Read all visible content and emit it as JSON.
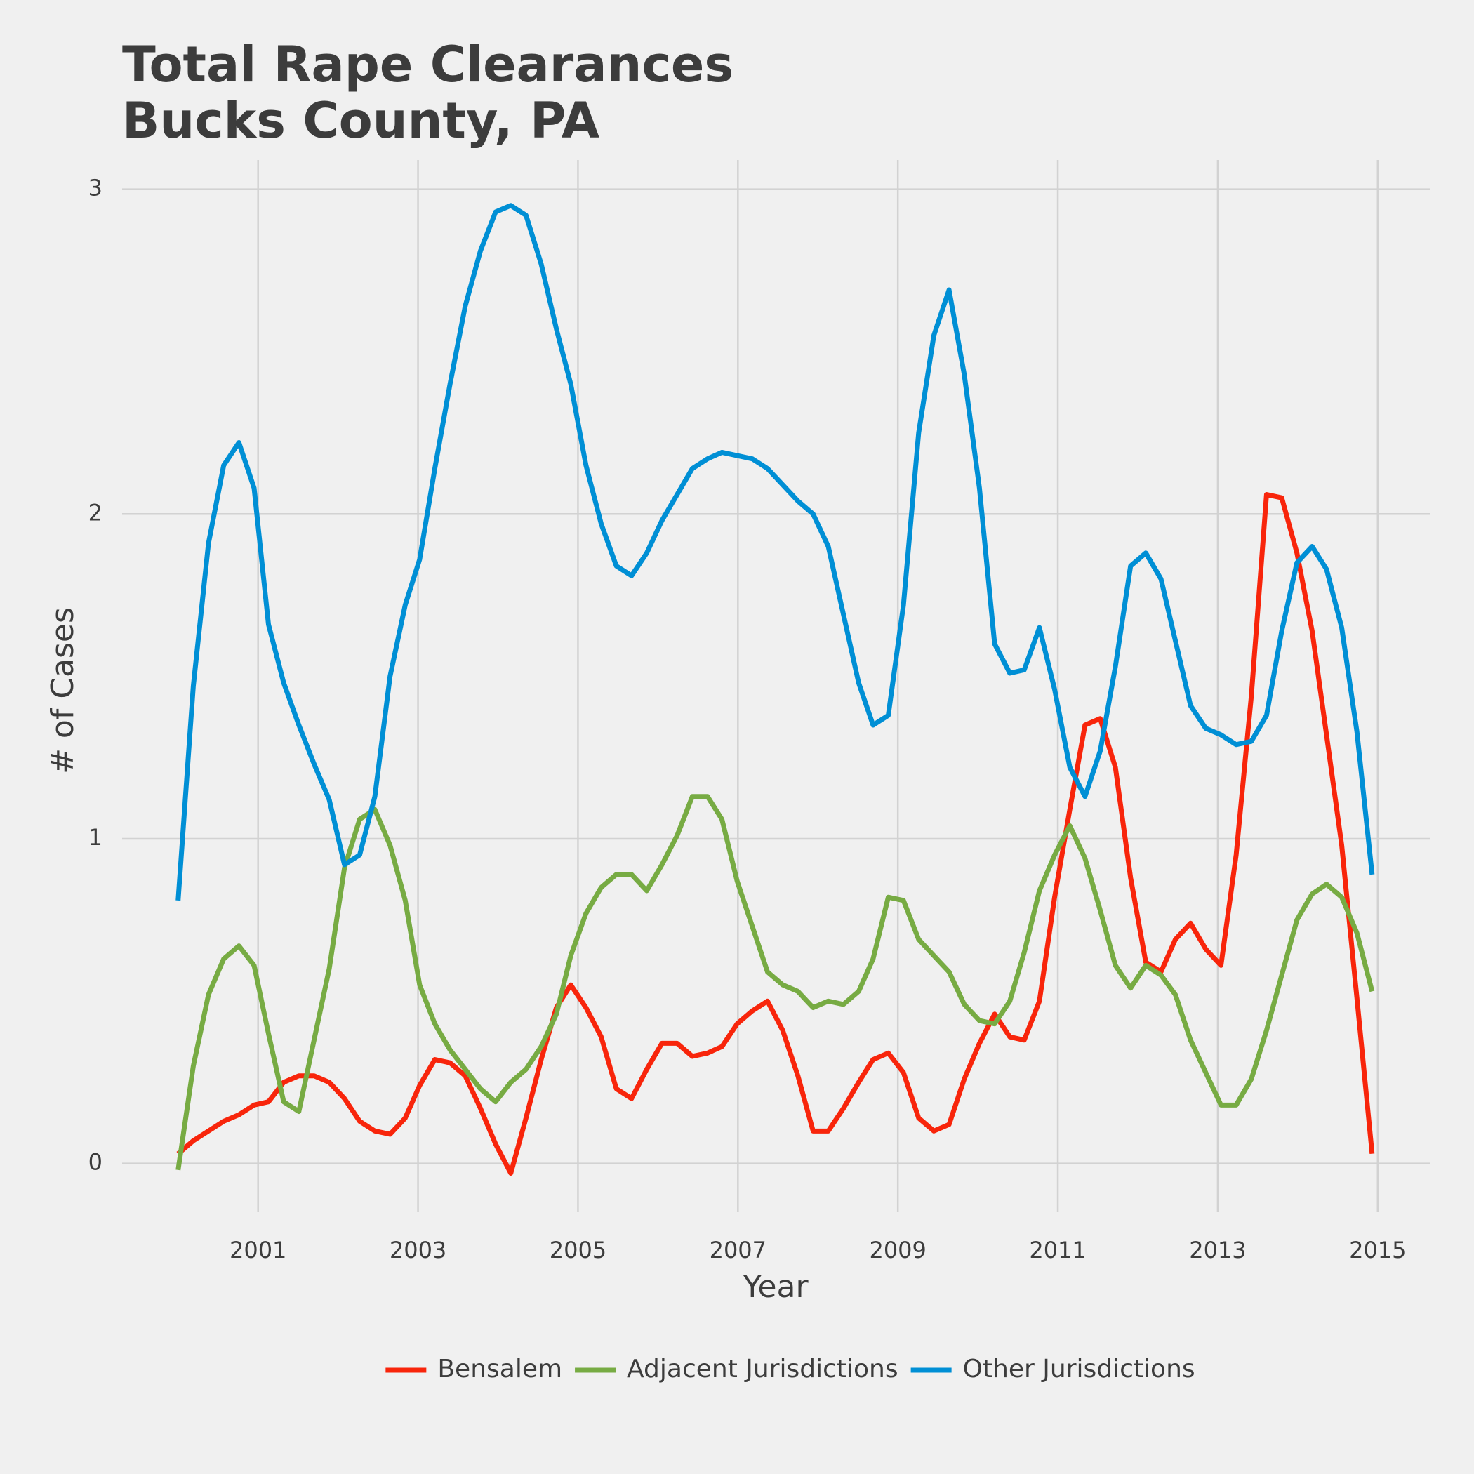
{
  "chart_data": {
    "type": "line",
    "title": [
      "Total Rape Clearances",
      "Bucks County, PA"
    ],
    "x_label": "Year",
    "y_label": "# of Cases",
    "x": [
      2000,
      2000.19,
      2000.38,
      2000.57,
      2000.76,
      2000.95,
      2001.13,
      2001.32,
      2001.51,
      2001.7,
      2001.89,
      2002.08,
      2002.27,
      2002.46,
      2002.65,
      2002.84,
      2003.02,
      2003.21,
      2003.4,
      2003.59,
      2003.78,
      2003.97,
      2004.16,
      2004.35,
      2004.54,
      2004.73,
      2004.91,
      2005.1,
      2005.29,
      2005.48,
      2005.67,
      2005.86,
      2006.05,
      2006.24,
      2006.43,
      2006.62,
      2006.8,
      2006.99,
      2007.18,
      2007.37,
      2007.56,
      2007.75,
      2007.94,
      2008.13,
      2008.32,
      2008.51,
      2008.69,
      2008.88,
      2009.07,
      2009.26,
      2009.45,
      2009.64,
      2009.83,
      2010.02,
      2010.21,
      2010.4,
      2010.58,
      2010.77,
      2010.96,
      2011.15,
      2011.34,
      2011.53,
      2011.72,
      2011.91,
      2012.1,
      2012.29,
      2012.47,
      2012.66,
      2012.85,
      2013.04,
      2013.23,
      2013.42,
      2013.61,
      2013.8,
      2013.99,
      2014.18,
      2014.36,
      2014.55,
      2014.74,
      2014.93
    ],
    "series": [
      {
        "name": "Bensalem",
        "color": "#f8250b",
        "values": [
          0.03,
          0.07,
          0.1,
          0.13,
          0.15,
          0.18,
          0.19,
          0.25,
          0.27,
          0.27,
          0.25,
          0.2,
          0.13,
          0.1,
          0.09,
          0.14,
          0.24,
          0.32,
          0.31,
          0.27,
          0.17,
          0.06,
          -0.03,
          0.14,
          0.32,
          0.48,
          0.55,
          0.48,
          0.39,
          0.23,
          0.2,
          0.29,
          0.37,
          0.37,
          0.33,
          0.34,
          0.36,
          0.43,
          0.47,
          0.5,
          0.41,
          0.27,
          0.1,
          0.1,
          0.17,
          0.25,
          0.32,
          0.34,
          0.28,
          0.14,
          0.1,
          0.12,
          0.26,
          0.37,
          0.46,
          0.39,
          0.38,
          0.5,
          0.82,
          1.09,
          1.35,
          1.37,
          1.22,
          0.88,
          0.62,
          0.59,
          0.69,
          0.74,
          0.66,
          0.61,
          0.95,
          1.44,
          2.06,
          2.05,
          1.88,
          1.64,
          1.32,
          0.98,
          0.51,
          0.03
        ]
      },
      {
        "name": "Adjacent Jurisdictions",
        "color": "#77ab43",
        "values": [
          -0.02,
          0.3,
          0.52,
          0.63,
          0.67,
          0.61,
          0.4,
          0.19,
          0.16,
          0.38,
          0.6,
          0.91,
          1.06,
          1.09,
          0.98,
          0.81,
          0.55,
          0.43,
          0.35,
          0.29,
          0.23,
          0.19,
          0.25,
          0.29,
          0.36,
          0.46,
          0.64,
          0.77,
          0.85,
          0.89,
          0.89,
          0.84,
          0.92,
          1.01,
          1.13,
          1.13,
          1.06,
          0.87,
          0.73,
          0.59,
          0.55,
          0.53,
          0.48,
          0.5,
          0.49,
          0.53,
          0.63,
          0.82,
          0.81,
          0.69,
          0.64,
          0.59,
          0.49,
          0.44,
          0.43,
          0.5,
          0.65,
          0.84,
          0.95,
          1.04,
          0.94,
          0.78,
          0.61,
          0.54,
          0.61,
          0.58,
          0.52,
          0.38,
          0.28,
          0.18,
          0.18,
          0.26,
          0.41,
          0.58,
          0.75,
          0.83,
          0.86,
          0.82,
          0.71,
          0.53
        ]
      },
      {
        "name": "Other Jurisdictions",
        "color": "#008fd5",
        "values": [
          0.81,
          1.47,
          1.91,
          2.15,
          2.22,
          2.08,
          1.66,
          1.48,
          1.35,
          1.23,
          1.12,
          0.92,
          0.95,
          1.13,
          1.5,
          1.72,
          1.86,
          2.14,
          2.4,
          2.64,
          2.81,
          2.93,
          2.95,
          2.92,
          2.77,
          2.57,
          2.4,
          2.15,
          1.97,
          1.84,
          1.81,
          1.88,
          1.98,
          2.06,
          2.14,
          2.17,
          2.19,
          2.18,
          2.17,
          2.14,
          2.09,
          2.04,
          2.0,
          1.9,
          1.69,
          1.48,
          1.35,
          1.38,
          1.72,
          2.25,
          2.55,
          2.69,
          2.43,
          2.08,
          1.6,
          1.51,
          1.52,
          1.65,
          1.46,
          1.22,
          1.13,
          1.27,
          1.53,
          1.84,
          1.88,
          1.8,
          1.61,
          1.41,
          1.34,
          1.32,
          1.29,
          1.3,
          1.38,
          1.64,
          1.85,
          1.9,
          1.83,
          1.65,
          1.33,
          0.89
        ]
      }
    ],
    "xlim": [
      1999.3,
      2015.66
    ],
    "xticks": [
      2001,
      2003,
      2005,
      2007,
      2009,
      2011,
      2013,
      2015
    ],
    "ylim": [
      -0.15,
      3.09
    ],
    "yticks": [
      0,
      1,
      2,
      3
    ],
    "grid": true,
    "legend": "bottom"
  }
}
